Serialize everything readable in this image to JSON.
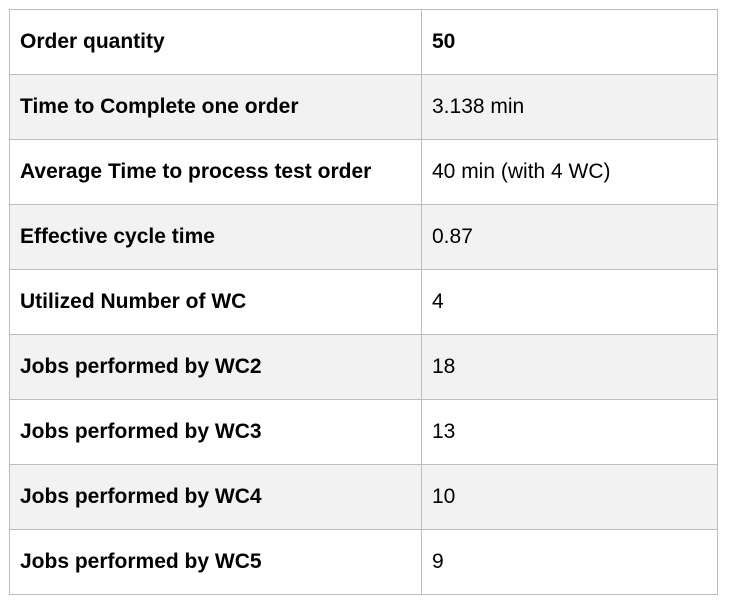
{
  "table": {
    "rows": [
      {
        "label": "Order quantity",
        "value": "50"
      },
      {
        "label": "Time to Complete one order",
        "value": "3.138 min"
      },
      {
        "label": "Average Time to process test order",
        "value": "40 min (with 4 WC)"
      },
      {
        "label": "Effective cycle time",
        "value": "0.87"
      },
      {
        "label": "Utilized Number of WC",
        "value": "4"
      },
      {
        "label": "Jobs performed by WC2",
        "value": "18"
      },
      {
        "label": "Jobs performed by WC3",
        "value": "13"
      },
      {
        "label": "Jobs performed by WC4",
        "value": "10"
      },
      {
        "label": "Jobs performed by WC5",
        "value": "9"
      }
    ]
  }
}
